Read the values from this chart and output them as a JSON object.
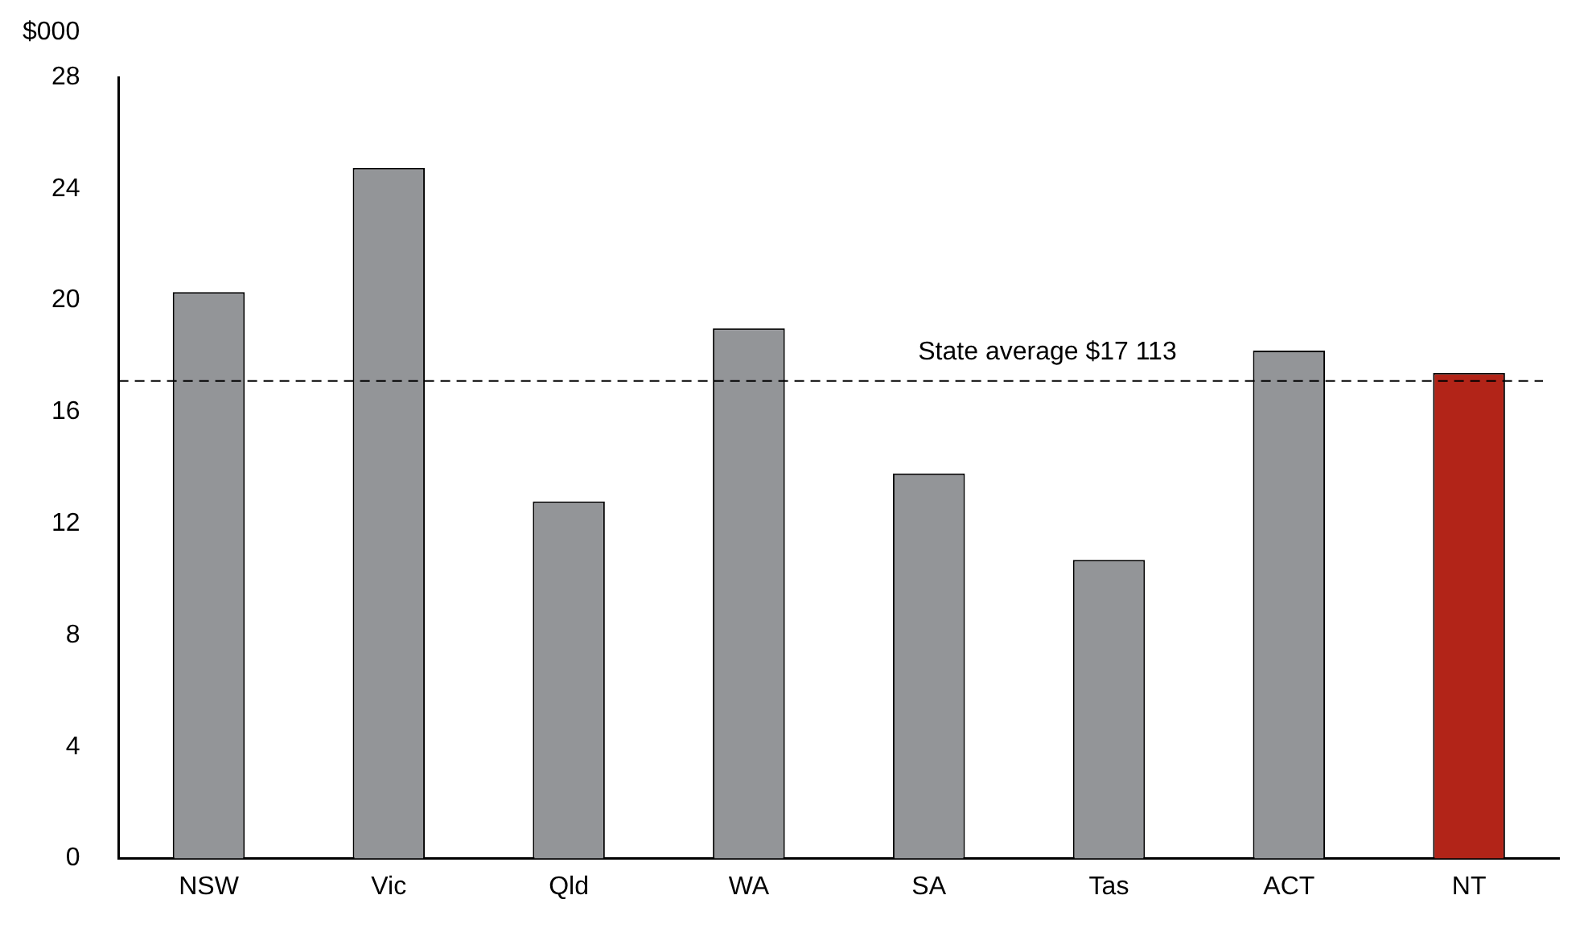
{
  "chart_data": {
    "type": "bar",
    "ylabel": "$000",
    "categories": [
      "NSW",
      "Vic",
      "Qld",
      "WA",
      "SA",
      "Tas",
      "ACT",
      "NT"
    ],
    "values": [
      20.3,
      24.75,
      12.8,
      19.0,
      13.8,
      10.7,
      18.2,
      17.4
    ],
    "colors": [
      "#939598",
      "#939598",
      "#939598",
      "#939598",
      "#939598",
      "#939598",
      "#939598",
      "#b22418"
    ],
    "ylim": [
      0,
      28
    ],
    "yticks": [
      0,
      4,
      8,
      12,
      16,
      20,
      24,
      28
    ],
    "grid": false,
    "legend": false,
    "ref_lines": [
      {
        "axis": "y",
        "value": 17.113,
        "label": "State average $17 113",
        "line_style": "dashed",
        "color": "#000000"
      }
    ]
  }
}
